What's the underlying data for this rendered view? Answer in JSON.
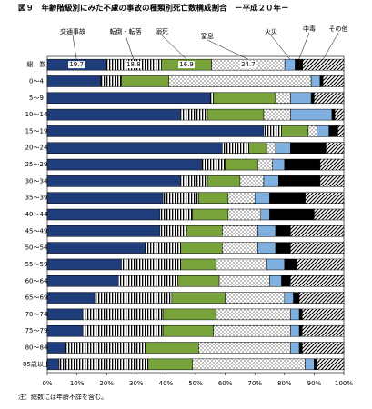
{
  "chart_data": {
    "type": "stacked-bar-horizontal",
    "title": "図９　年齢階級別にみた不慮の事故の種類別死亡数構成割合　－平成２０年－",
    "note": "注：総数には年齢不詳を含む。",
    "categories": [
      "総　数",
      "0～4",
      "5～9",
      "10～14",
      "15～19",
      "20～24",
      "25～29",
      "30～34",
      "35～39",
      "40～44",
      "45～49",
      "50～54",
      "55～59",
      "60～64",
      "65～69",
      "70～74",
      "75～79",
      "80～84",
      "85歳以上"
    ],
    "series": [
      {
        "name": "交通事故",
        "color": "#1f3d7a",
        "pattern": "solid",
        "values": [
          19.7,
          18,
          55,
          45,
          73,
          59,
          52,
          45,
          39,
          38,
          38,
          33,
          25,
          24,
          16,
          12,
          12,
          6,
          4
        ]
      },
      {
        "name": "転倒・転落",
        "color": "#000000",
        "pattern": "vertical-stripes",
        "values": [
          18.8,
          7,
          1,
          9,
          6,
          9,
          8,
          9,
          12,
          11,
          9,
          12,
          20,
          20,
          26,
          27,
          27,
          27,
          30
        ]
      },
      {
        "name": "溺死",
        "color": "#77a33a",
        "pattern": "solid",
        "values": [
          16.9,
          16,
          21,
          19,
          9,
          6,
          11,
          11,
          10,
          12,
          12,
          14,
          12,
          14,
          18,
          18,
          17,
          18,
          15
        ]
      },
      {
        "name": "窒息",
        "color": "#000000",
        "pattern": "dots",
        "values": [
          24.7,
          48,
          5,
          9,
          3,
          3,
          5,
          8,
          9,
          11,
          12,
          12,
          17,
          17,
          20,
          25,
          26,
          31,
          38
        ]
      },
      {
        "name": "火災",
        "color": "#7fb0e0",
        "pattern": "solid",
        "values": [
          3.5,
          3,
          7,
          14,
          4,
          5,
          4,
          5,
          5,
          3,
          6,
          6,
          6,
          4,
          3,
          3,
          3,
          3,
          3
        ]
      },
      {
        "name": "中毒",
        "color": "#000000",
        "pattern": "solid",
        "values": [
          2.5,
          1,
          1,
          1,
          3,
          12,
          12,
          14,
          12,
          15,
          5,
          5,
          4,
          3,
          2,
          1,
          1,
          1,
          1
        ]
      },
      {
        "name": "その他",
        "color": "#000000",
        "pattern": "diagonal",
        "values": [
          13.9,
          7,
          10,
          3,
          2,
          6,
          8,
          8,
          13,
          10,
          18,
          18,
          16,
          18,
          15,
          14,
          14,
          14,
          9
        ]
      }
    ],
    "xlim": [
      0,
      100
    ],
    "xticks": [
      {
        "value": 0,
        "label": "0%"
      },
      {
        "value": 10,
        "label": "10%"
      },
      {
        "value": 20,
        "label": "20%"
      },
      {
        "value": 30,
        "label": "30%"
      },
      {
        "value": 40,
        "label": "40%"
      },
      {
        "value": 50,
        "label": "50%"
      },
      {
        "value": 60,
        "label": "60%"
      },
      {
        "value": 70,
        "label": "70%"
      },
      {
        "value": 80,
        "label": "80%"
      },
      {
        "value": 90,
        "label": "90%"
      },
      {
        "value": 100,
        "label": "100%"
      }
    ]
  }
}
